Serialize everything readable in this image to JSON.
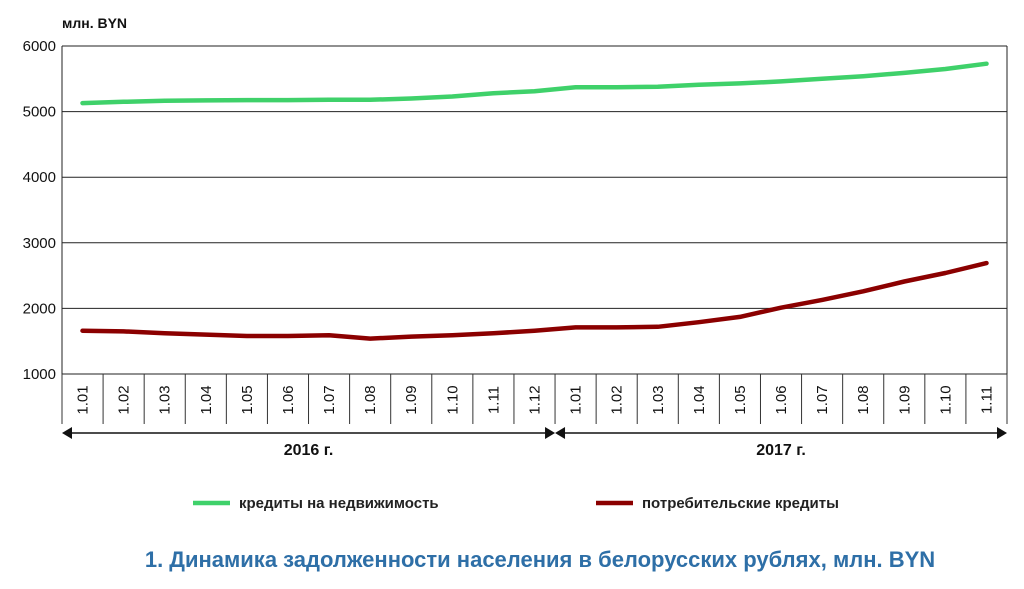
{
  "chart_data": {
    "type": "line",
    "unit_label": "млн. BYN",
    "caption": "1. Динамика задолженности населения в белорусских рублях, млн. BYN",
    "ylim": [
      1000,
      6000
    ],
    "yticks": [
      "1000",
      "2000",
      "3000",
      "4000",
      "5000",
      "6000"
    ],
    "categories": [
      "1.01",
      "1.02",
      "1.03",
      "1.04",
      "1.05",
      "1.06",
      "1.07",
      "1.08",
      "1.09",
      "1.10",
      "1.11",
      "1.12",
      "1.01",
      "1.02",
      "1.03",
      "1.04",
      "1.05",
      "1.06",
      "1.07",
      "1.08",
      "1.09",
      "1.10",
      "1.11"
    ],
    "year_groups": [
      {
        "label": "2016 г.",
        "start": 0,
        "end": 11
      },
      {
        "label": "2017 г.",
        "start": 12,
        "end": 22
      }
    ],
    "grid": true,
    "legend_position": "bottom",
    "series": [
      {
        "name": "кредиты на недвижимость",
        "color": "#3fd16a",
        "values": [
          5130,
          5150,
          5165,
          5170,
          5175,
          5175,
          5180,
          5180,
          5200,
          5230,
          5280,
          5310,
          5370,
          5370,
          5380,
          5410,
          5430,
          5460,
          5500,
          5540,
          5590,
          5650,
          5730
        ]
      },
      {
        "name": "потребительские кредиты",
        "color": "#8b0000",
        "values": [
          1660,
          1650,
          1620,
          1600,
          1580,
          1580,
          1590,
          1540,
          1570,
          1590,
          1620,
          1660,
          1710,
          1710,
          1720,
          1790,
          1870,
          2010,
          2130,
          2260,
          2410,
          2540,
          2690
        ]
      }
    ]
  }
}
